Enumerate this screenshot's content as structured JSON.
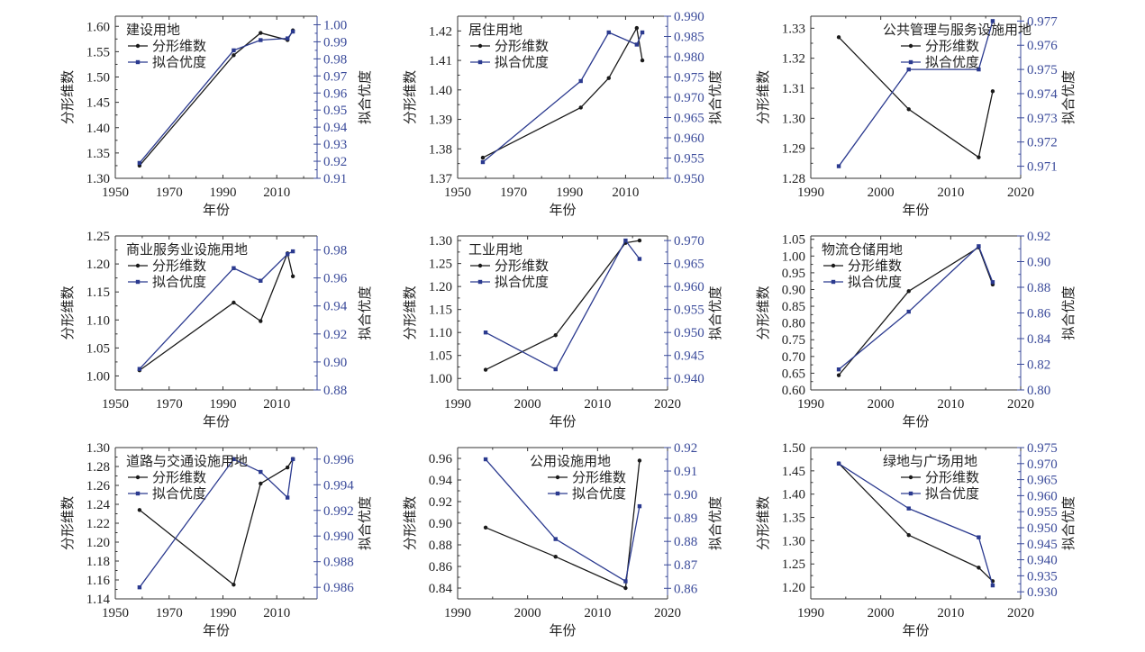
{
  "figure": {
    "series_names": [
      "分形维数",
      "拟合优度"
    ],
    "x_label": "年份",
    "y_left_label": "分形维数",
    "y_right_label": "拟合优度",
    "colors": {
      "fractal": "#1a1a1a",
      "fit": "#2b3a8f",
      "right_axis": "#3a4a9a",
      "axis": "#333333"
    }
  },
  "chart_data": [
    {
      "type": "line",
      "title": "建设用地",
      "xlabel": "年份",
      "ylabel": "分形维数",
      "y2label": "拟合优度",
      "xlim": [
        1950,
        2025
      ],
      "xticks": [
        1950,
        1970,
        1990,
        2010
      ],
      "ylim": [
        1.3,
        1.62
      ],
      "yticks": [
        "1.30",
        "1.35",
        "1.40",
        "1.45",
        "1.50",
        "1.55",
        "1.60"
      ],
      "y2lim": [
        0.91,
        1.005
      ],
      "y2ticks": [
        "0.91",
        "0.92",
        "0.93",
        "0.94",
        "0.95",
        "0.96",
        "0.97",
        "0.98",
        "0.99",
        "1.00"
      ],
      "x": [
        1959,
        1994,
        2004,
        2014,
        2016
      ],
      "series": [
        {
          "name": "分形维数",
          "axis": "left",
          "values": [
            1.325,
            1.543,
            1.587,
            1.573,
            1.592
          ]
        },
        {
          "name": "拟合优度",
          "axis": "right",
          "values": [
            0.919,
            0.985,
            0.991,
            0.992,
            0.996
          ]
        }
      ],
      "legend": "top-left"
    },
    {
      "type": "line",
      "title": "居住用地",
      "xlabel": "年份",
      "ylabel": "分形维数",
      "y2label": "拟合优度",
      "xlim": [
        1950,
        2025
      ],
      "xticks": [
        1950,
        1970,
        1990,
        2010
      ],
      "ylim": [
        1.37,
        1.425
      ],
      "yticks": [
        "1.37",
        "1.38",
        "1.39",
        "1.40",
        "1.41",
        "1.42"
      ],
      "y2lim": [
        0.95,
        0.99
      ],
      "y2ticks": [
        "0.950",
        "0.955",
        "0.960",
        "0.965",
        "0.970",
        "0.975",
        "0.980",
        "0.985",
        "0.990"
      ],
      "x": [
        1959,
        1994,
        2004,
        2014,
        2016
      ],
      "series": [
        {
          "name": "分形维数",
          "axis": "left",
          "values": [
            1.377,
            1.394,
            1.404,
            1.421,
            1.41
          ]
        },
        {
          "name": "拟合优度",
          "axis": "right",
          "values": [
            0.954,
            0.974,
            0.986,
            0.983,
            0.986
          ]
        }
      ],
      "legend": "top-left"
    },
    {
      "type": "line",
      "title": "公共管理与服务设施用地",
      "xlabel": "年份",
      "ylabel": "分形维数",
      "y2label": "拟合优度",
      "xlim": [
        1990,
        2020
      ],
      "xticks": [
        1990,
        2000,
        2010,
        2020
      ],
      "ylim": [
        1.28,
        1.334
      ],
      "yticks": [
        "1.28",
        "1.29",
        "1.30",
        "1.31",
        "1.32",
        "1.33"
      ],
      "y2lim": [
        0.9705,
        0.9772
      ],
      "y2ticks": [
        "0.971",
        "0.972",
        "0.973",
        "0.974",
        "0.975",
        "0.976",
        "0.977"
      ],
      "x": [
        1994,
        2004,
        2014,
        2016
      ],
      "series": [
        {
          "name": "分形维数",
          "axis": "left",
          "values": [
            1.327,
            1.303,
            1.287,
            1.309
          ]
        },
        {
          "name": "拟合优度",
          "axis": "right",
          "values": [
            0.971,
            0.975,
            0.975,
            0.977
          ]
        }
      ],
      "legend": "top-center"
    },
    {
      "type": "line",
      "title": "商业服务业设施用地",
      "xlabel": "年份",
      "ylabel": "分形维数",
      "y2label": "拟合优度",
      "xlim": [
        1950,
        2025
      ],
      "xticks": [
        1950,
        1970,
        1990,
        2010
      ],
      "ylim": [
        0.975,
        1.25
      ],
      "yticks": [
        "1.00",
        "1.05",
        "1.10",
        "1.15",
        "1.20",
        "1.25"
      ],
      "y2lim": [
        0.88,
        0.99
      ],
      "y2ticks": [
        "0.88",
        "0.90",
        "0.92",
        "0.94",
        "0.96",
        "0.98"
      ],
      "x": [
        1959,
        1994,
        2004,
        2014,
        2016
      ],
      "series": [
        {
          "name": "分形维数",
          "axis": "left",
          "values": [
            1.01,
            1.131,
            1.098,
            1.219,
            1.178
          ]
        },
        {
          "name": "拟合优度",
          "axis": "right",
          "values": [
            0.895,
            0.967,
            0.958,
            0.977,
            0.979
          ]
        }
      ],
      "legend": "top-left"
    },
    {
      "type": "line",
      "title": "工业用地",
      "xlabel": "年份",
      "ylabel": "分形维数",
      "y2label": "拟合优度",
      "xlim": [
        1990,
        2020
      ],
      "xticks": [
        1990,
        2000,
        2010,
        2020
      ],
      "ylim": [
        0.975,
        1.31
      ],
      "yticks": [
        "1.00",
        "1.05",
        "1.10",
        "1.15",
        "1.20",
        "1.25",
        "1.30"
      ],
      "y2lim": [
        0.9375,
        0.971
      ],
      "y2ticks": [
        "0.940",
        "0.945",
        "0.950",
        "0.955",
        "0.960",
        "0.965",
        "0.970"
      ],
      "x": [
        1994,
        2004,
        2014,
        2016
      ],
      "series": [
        {
          "name": "分形维数",
          "axis": "left",
          "values": [
            1.019,
            1.094,
            1.295,
            1.3
          ]
        },
        {
          "name": "拟合优度",
          "axis": "right",
          "values": [
            0.95,
            0.942,
            0.97,
            0.966
          ]
        }
      ],
      "legend": "top-left"
    },
    {
      "type": "line",
      "title": "物流仓储用地",
      "xlabel": "年份",
      "ylabel": "分形维数",
      "y2label": "拟合优度",
      "xlim": [
        1990,
        2020
      ],
      "xticks": [
        1990,
        2000,
        2010,
        2020
      ],
      "ylim": [
        0.6,
        1.06
      ],
      "yticks": [
        "0.60",
        "0.65",
        "0.70",
        "0.75",
        "0.80",
        "0.85",
        "0.90",
        "0.95",
        "1.00",
        "1.05"
      ],
      "y2lim": [
        0.8,
        0.92
      ],
      "y2ticks": [
        "0.80",
        "0.82",
        "0.84",
        "0.86",
        "0.88",
        "0.90",
        "0.92"
      ],
      "x": [
        1994,
        2004,
        2014,
        2016
      ],
      "series": [
        {
          "name": "分形维数",
          "axis": "left",
          "values": [
            0.644,
            0.895,
            1.026,
            0.915
          ]
        },
        {
          "name": "拟合优度",
          "axis": "right",
          "values": [
            0.816,
            0.861,
            0.912,
            0.884
          ]
        }
      ],
      "legend": "top-left"
    },
    {
      "type": "line",
      "title": "道路与交通设施用地",
      "xlabel": "年份",
      "ylabel": "分形维数",
      "y2label": "拟合优度",
      "xlim": [
        1950,
        2025
      ],
      "xticks": [
        1950,
        1970,
        1990,
        2010
      ],
      "ylim": [
        1.14,
        1.3
      ],
      "yticks": [
        "1.14",
        "1.16",
        "1.18",
        "1.20",
        "1.22",
        "1.24",
        "1.26",
        "1.28",
        "1.30"
      ],
      "y2lim": [
        0.9851,
        0.9969
      ],
      "y2ticks": [
        "0.986",
        "0.988",
        "0.990",
        "0.992",
        "0.994",
        "0.996"
      ],
      "x": [
        1959,
        1994,
        2004,
        2014,
        2016
      ],
      "series": [
        {
          "name": "分形维数",
          "axis": "left",
          "values": [
            1.234,
            1.155,
            1.262,
            1.279,
            1.288
          ]
        },
        {
          "name": "拟合优度",
          "axis": "right",
          "values": [
            0.986,
            0.996,
            0.995,
            0.993,
            0.996
          ]
        }
      ],
      "legend": "top-left"
    },
    {
      "type": "line",
      "title": "公用设施用地",
      "xlabel": "年份",
      "ylabel": "分形维数",
      "y2label": "拟合优度",
      "xlim": [
        1990,
        2020
      ],
      "xticks": [
        1990,
        2000,
        2010,
        2020
      ],
      "ylim": [
        0.83,
        0.97
      ],
      "yticks": [
        "0.84",
        "0.86",
        "0.88",
        "0.90",
        "0.92",
        "0.94",
        "0.96"
      ],
      "y2lim": [
        0.8555,
        0.92
      ],
      "y2ticks": [
        "0.86",
        "0.87",
        "0.88",
        "0.89",
        "0.90",
        "0.91",
        "0.92"
      ],
      "x": [
        1994,
        2004,
        2014,
        2016
      ],
      "series": [
        {
          "name": "分形维数",
          "axis": "left",
          "values": [
            0.896,
            0.869,
            0.84,
            0.958
          ]
        },
        {
          "name": "拟合优度",
          "axis": "right",
          "values": [
            0.915,
            0.881,
            0.863,
            0.895
          ]
        }
      ],
      "legend": "top-center"
    },
    {
      "type": "line",
      "title": "绿地与广场用地",
      "xlabel": "年份",
      "ylabel": "分形维数",
      "y2label": "拟合优度",
      "xlim": [
        1990,
        2020
      ],
      "xticks": [
        1990,
        2000,
        2010,
        2020
      ],
      "ylim": [
        1.175,
        1.5
      ],
      "yticks": [
        "1.20",
        "1.25",
        "1.30",
        "1.35",
        "1.40",
        "1.45",
        "1.50"
      ],
      "y2lim": [
        0.9278,
        0.975
      ],
      "y2ticks": [
        "0.930",
        "0.935",
        "0.940",
        "0.945",
        "0.950",
        "0.955",
        "0.960",
        "0.965",
        "0.970",
        "0.975"
      ],
      "x": [
        1994,
        2004,
        2014,
        2016
      ],
      "series": [
        {
          "name": "分形维数",
          "axis": "left",
          "values": [
            1.466,
            1.312,
            1.242,
            1.213
          ]
        },
        {
          "name": "拟合优度",
          "axis": "right",
          "values": [
            0.97,
            0.956,
            0.947,
            0.932
          ]
        }
      ],
      "legend": "top-center"
    }
  ]
}
